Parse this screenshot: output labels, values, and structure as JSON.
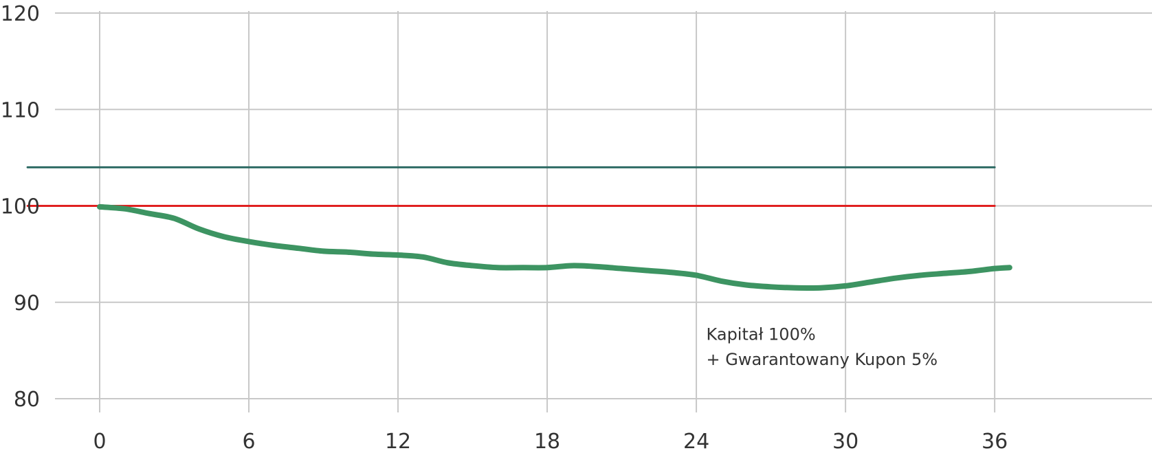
{
  "chart_data": {
    "type": "line",
    "xlim": [
      -2.9,
      43.5
    ],
    "ylim": [
      80,
      120
    ],
    "x_ticks": [
      "0",
      "6",
      "12",
      "18",
      "24",
      "30",
      "36"
    ],
    "y_ticks": [
      "120",
      "110",
      "100",
      "90",
      "80"
    ],
    "grid": true,
    "series": [
      {
        "color": "#2e6b64",
        "x": [
          -2.9,
          36
        ],
        "y": [
          104,
          104
        ]
      },
      {
        "color": "#e02020",
        "x": [
          -2.9,
          36
        ],
        "y": [
          100,
          100
        ]
      },
      {
        "color": "#3d9462",
        "x": [
          0,
          1,
          2,
          3,
          4,
          5,
          6,
          7,
          8,
          9,
          10,
          11,
          12,
          13,
          14,
          15,
          16,
          17,
          18,
          19,
          20,
          21,
          22,
          23,
          24,
          25,
          26,
          27,
          28,
          29,
          30,
          31,
          32,
          33,
          34,
          35,
          36,
          36.6
        ],
        "y": [
          99.9,
          99.7,
          99.2,
          98.7,
          97.6,
          96.8,
          96.3,
          95.9,
          95.6,
          95.3,
          95.2,
          95.0,
          94.9,
          94.7,
          94.1,
          93.8,
          93.6,
          93.6,
          93.6,
          93.8,
          93.7,
          93.5,
          93.3,
          93.1,
          92.8,
          92.2,
          91.8,
          91.6,
          91.5,
          91.5,
          91.7,
          92.1,
          92.5,
          92.8,
          93.0,
          93.2,
          93.5,
          93.6
        ]
      }
    ],
    "annotations": [
      {
        "text": "Kapitał 100%",
        "x": 24.4,
        "y": 86.1
      },
      {
        "text": "+ Gwarantowany Kupon 5%",
        "x": 24.4,
        "y": 83.5
      }
    ]
  },
  "colors": {
    "grid": "#c8c8c8",
    "text": "#333333"
  }
}
